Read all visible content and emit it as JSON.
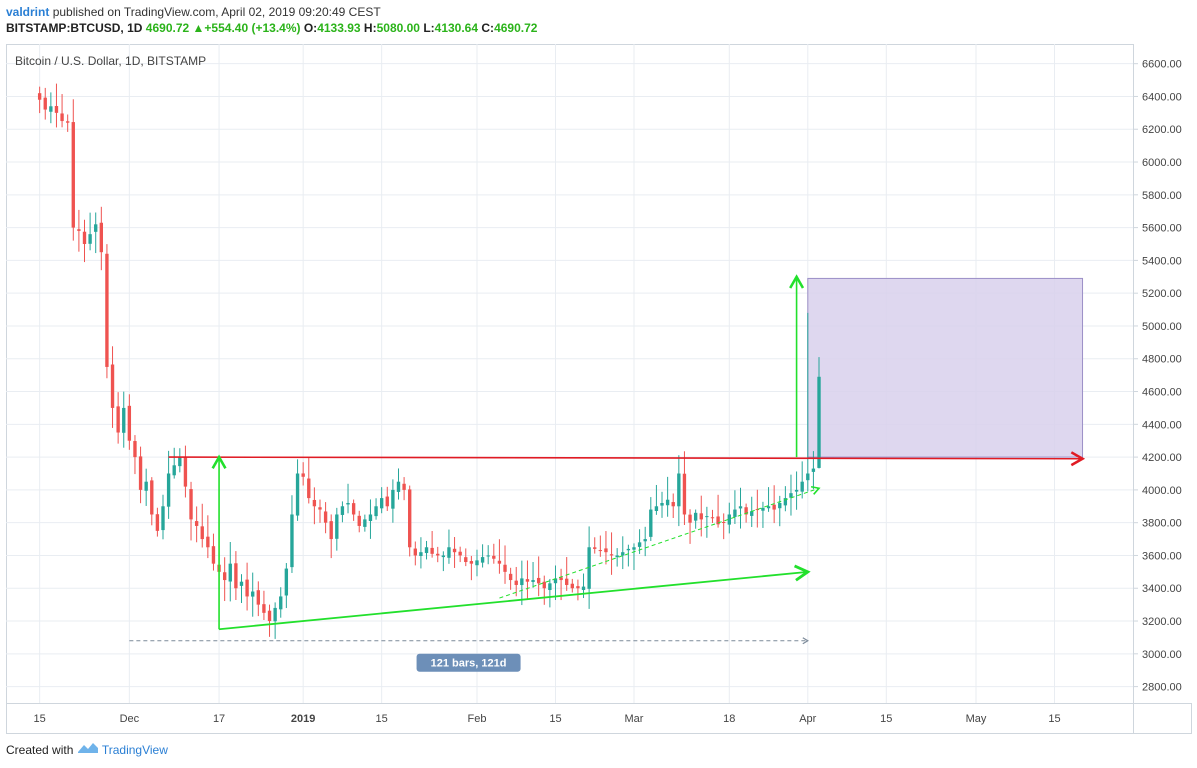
{
  "header": {
    "author": "valdrint",
    "published_text": "published on TradingView.com, April 02, 2019 09:20:49 CEST",
    "symbol": "BITSTAMP:BTCUSD, 1D",
    "last": "4690.72",
    "change": "+554.40 (+13.4%)",
    "open_label": "O:",
    "open": "4133.93",
    "high_label": "H:",
    "high": "5080.00",
    "low_label": "L:",
    "low": "4130.64",
    "close_label": "C:",
    "close": "4690.72"
  },
  "footer": {
    "created_with": "Created with",
    "brand": "TradingView"
  },
  "colors": {
    "up": "#26a69a",
    "down": "#ef5350",
    "resistance": "#e01b24",
    "support": "#22e02c",
    "target_zone": "#d8d0ec",
    "grid": "#e9edf2"
  },
  "chart_data": {
    "type": "candlestick",
    "title": "Bitcoin / U.S. Dollar, 1D, BITSTAMP",
    "ylim": [
      2700,
      6720
    ],
    "y_ticks": [
      2800,
      3000,
      3200,
      3400,
      3600,
      3800,
      4000,
      4200,
      4400,
      4600,
      4800,
      5000,
      5200,
      5400,
      5600,
      5800,
      6000,
      6200,
      6400,
      6600
    ],
    "x_ticks": [
      {
        "label": "15",
        "day": 0
      },
      {
        "label": "Dec",
        "day": 16
      },
      {
        "label": "17",
        "day": 32
      },
      {
        "label": "2019",
        "day": 47
      },
      {
        "label": "15",
        "day": 61
      },
      {
        "label": "Feb",
        "day": 78
      },
      {
        "label": "15",
        "day": 92
      },
      {
        "label": "Mar",
        "day": 106
      },
      {
        "label": "18",
        "day": 123
      },
      {
        "label": "Apr",
        "day": 137
      },
      {
        "label": "15",
        "day": 151
      },
      {
        "label": "May",
        "day": 167
      },
      {
        "label": "15",
        "day": 181
      }
    ],
    "days_range": [
      -6,
      195
    ],
    "closes": [
      6380,
      6320,
      6340,
      6300,
      6250,
      6240,
      5600,
      5580,
      5500,
      5560,
      5620,
      5450,
      4750,
      4500,
      4350,
      4500,
      4300,
      4200,
      4000,
      4050,
      3850,
      3750,
      3900,
      4100,
      4150,
      4200,
      4020,
      3820,
      3780,
      3700,
      3650,
      3550,
      3500,
      3450,
      3550,
      3400,
      3440,
      3350,
      3380,
      3300,
      3250,
      3200,
      3280,
      3350,
      3520,
      3850,
      4100,
      4080,
      3950,
      3900,
      3880,
      3800,
      3700,
      3850,
      3900,
      3920,
      3850,
      3780,
      3820,
      3850,
      3900,
      3950,
      3900,
      4000,
      4050,
      4000,
      3650,
      3600,
      3620,
      3650,
      3610,
      3600,
      3600,
      3650,
      3620,
      3600,
      3560,
      3550,
      3570,
      3590,
      3600,
      3580,
      3550,
      3500,
      3450,
      3420,
      3460,
      3440,
      3450,
      3430,
      3400,
      3430,
      3460,
      3450,
      3420,
      3400,
      3400,
      3410,
      3650,
      3640,
      3630,
      3620,
      3600,
      3600,
      3620,
      3640,
      3650,
      3680,
      3700,
      3880,
      3900,
      3920,
      3940,
      3900,
      4100,
      3850,
      3800,
      3860,
      3820,
      3840,
      3830,
      3790,
      3800,
      3850,
      3880,
      3900,
      3850,
      3870,
      3880,
      3890,
      3900,
      3880,
      3920,
      3950,
      3980,
      4000,
      4050,
      4100,
      4130,
      4690
    ],
    "resistance": {
      "from": {
        "day": 23,
        "price": 4200
      },
      "to": {
        "day": 186,
        "price": 4190
      }
    },
    "support": {
      "from": {
        "day": 32,
        "price": 3150
      },
      "to": {
        "day": 137,
        "price": 3500
      }
    },
    "ascending_support_dashed": {
      "from": {
        "day": 82,
        "price": 3340
      },
      "to": {
        "day": 139,
        "price": 4010
      }
    },
    "breakout_arrow": {
      "day": 135,
      "from": 4200,
      "to": 5300
    },
    "base_arrow": {
      "day": 32,
      "from": 3150,
      "to": 4200
    },
    "target_zone": {
      "from_day": 137,
      "to_day": 186,
      "low": 4200,
      "high": 5290
    },
    "range_label": "121 bars, 121d",
    "range": {
      "from_day": 16,
      "to_day": 137,
      "price": 3080
    }
  }
}
